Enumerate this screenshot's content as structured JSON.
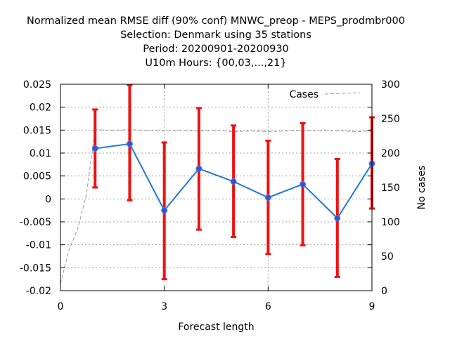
{
  "chart_data": {
    "type": "line",
    "title_lines": [
      "Normalized mean RMSE diff (90% conf) MNWC_preop - MEPS_prodmbr000",
      "Selection: Denmark using    35 stations",
      "Period: 20200901-20200930",
      "U10m   Hours: {00,03,...,21}"
    ],
    "xlabel": "Forecast length",
    "y2label": "No cases",
    "xlim": [
      0,
      9
    ],
    "ylim": [
      -0.02,
      0.025
    ],
    "y2lim": [
      0,
      300
    ],
    "xticks": [
      0,
      3,
      6,
      9
    ],
    "xtick_labels": [
      "0",
      "3",
      "6",
      "9"
    ],
    "yticks": [
      -0.02,
      -0.015,
      -0.01,
      -0.005,
      0,
      0.005,
      0.01,
      0.015,
      0.02,
      0.025
    ],
    "ytick_labels": [
      "-0.02",
      "-0.015",
      "-0.01",
      "-0.005",
      "0",
      "0.005",
      "0.01",
      "0.015",
      "0.02",
      "0.025"
    ],
    "y2ticks": [
      0,
      50,
      100,
      150,
      200,
      250,
      300
    ],
    "y2tick_labels": [
      "0",
      "50",
      "100",
      "150",
      "200",
      "250",
      "300"
    ],
    "grid": true,
    "legend": {
      "position": "top-right",
      "label": "Cases"
    },
    "series": [
      {
        "x": [
          1,
          2,
          3,
          4,
          5,
          6,
          7,
          8,
          9
        ],
        "values": [
          0.011,
          0.012,
          -0.0025,
          0.0066,
          0.0038,
          0.0003,
          0.0032,
          -0.0042,
          0.0077
        ],
        "err_low": [
          0.0025,
          -0.0003,
          -0.0175,
          -0.0067,
          -0.0083,
          -0.012,
          -0.0101,
          -0.017,
          -0.0021
        ],
        "err_high": [
          0.0195,
          0.0248,
          0.0123,
          0.0198,
          0.016,
          0.0127,
          0.0165,
          0.0087,
          0.0178
        ],
        "color": "#1f78d8",
        "marker_color": "#3355cc",
        "errorbar_color": "#ee1111"
      },
      {
        "name": "Cases",
        "axis": "y2",
        "x": [
          0,
          0.25,
          0.5,
          0.75,
          1,
          1.5,
          2,
          2.5,
          3,
          3.5,
          4,
          4.5,
          5,
          5.5,
          6,
          6.5,
          7,
          7.5,
          8,
          8.5,
          9
        ],
        "values": [
          10,
          60,
          90,
          140,
          234,
          233,
          234,
          233,
          232,
          233,
          232,
          233,
          231,
          232,
          231,
          232,
          233,
          232,
          233,
          231,
          232
        ],
        "color": "#999999",
        "dashed": true
      }
    ]
  }
}
